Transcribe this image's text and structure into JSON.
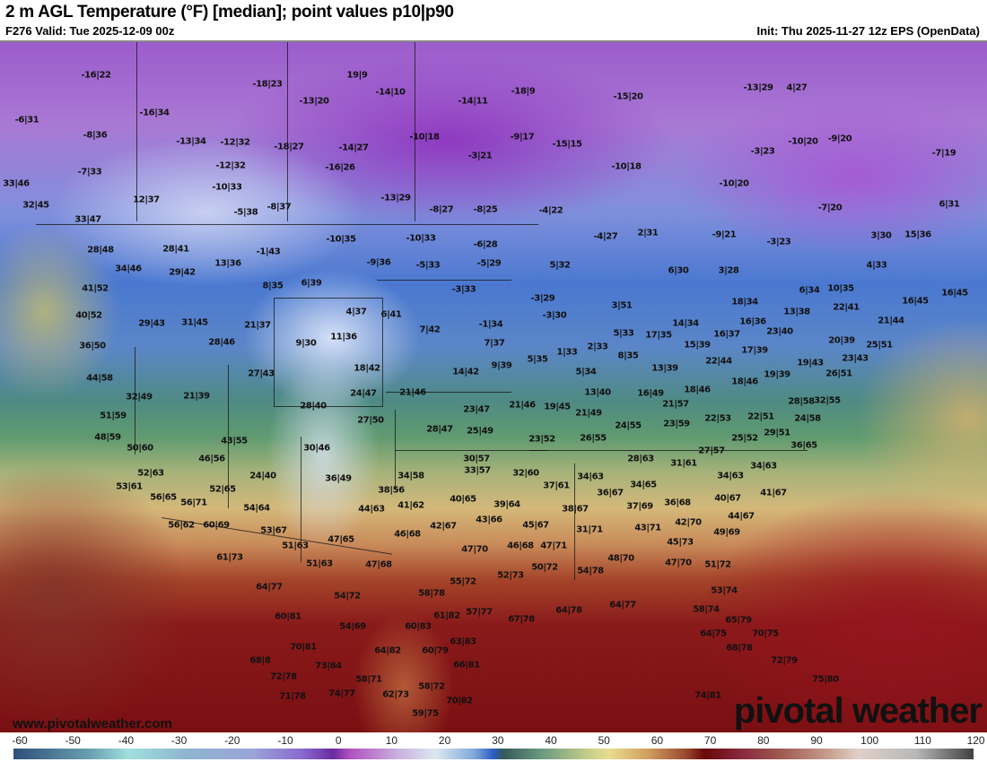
{
  "header": {
    "title": "2 m AGL Temperature (°F) [median]; point values p10|p90",
    "valid": "F276 Valid: Tue 2025-12-09 00z",
    "init": "Init: Thu 2025-11-27 12z EPS (OpenData)"
  },
  "watermark": {
    "url": "www.pivotalweather.com",
    "brand": "pivotal weather"
  },
  "colorbar": {
    "unit": "°F",
    "ticks": [
      "-60",
      "-50",
      "-40",
      "-30",
      "-20",
      "-10",
      "0",
      "10",
      "20",
      "30",
      "40",
      "50",
      "60",
      "70",
      "80",
      "90",
      "100",
      "110",
      "120"
    ]
  },
  "point_values": [
    "-16|22",
    "19|9",
    "-18|23",
    "-14|10",
    "-13|20",
    "-14|11",
    "-18|9",
    "-15|20",
    "-13|29",
    "4|27",
    "-6|31",
    "-16|34",
    "-8|36",
    "-13|34",
    "-12|32",
    "-18|27",
    "-14|27",
    "-10|18",
    "-9|17",
    "-15|15",
    "-3|21",
    "-3|23",
    "-10|20",
    "-9|20",
    "-7|19",
    "-7|33",
    "-12|32",
    "-16|26",
    "-10|18",
    "33|46",
    "-10|33",
    "12|37",
    "-13|29",
    "-10|20",
    "32|45",
    "-5|38",
    "-8|37",
    "-8|27",
    "-8|25",
    "-4|22",
    "-7|20",
    "6|31",
    "33|47",
    "28|48",
    "28|41",
    "13|36",
    "-1|43",
    "-10|35",
    "-10|33",
    "-6|28",
    "-4|27",
    "2|31",
    "-9|21",
    "-3|23",
    "3|30",
    "15|36",
    "34|46",
    "29|42",
    "8|35",
    "6|39",
    "-9|36",
    "-5|33",
    "-5|29",
    "5|32",
    "6|30",
    "3|28",
    "4|33",
    "41|52",
    "-3|33",
    "-3|29",
    "6|34",
    "10|35",
    "16|45",
    "16|45",
    "40|52",
    "29|43",
    "31|45",
    "21|37",
    "4|37",
    "6|41",
    "-1|34",
    "-3|30",
    "3|51",
    "18|34",
    "13|38",
    "22|41",
    "21|44",
    "36|50",
    "28|46",
    "9|30",
    "11|36",
    "7|42",
    "7|37",
    "5|33",
    "17|35",
    "14|34",
    "16|36",
    "16|37",
    "23|40",
    "20|39",
    "25|51",
    "44|58",
    "27|43",
    "18|42",
    "14|42",
    "9|39",
    "5|35",
    "1|33",
    "2|33",
    "8|35",
    "15|39",
    "17|39",
    "22|44",
    "19|43",
    "23|43",
    "26|51",
    "19|39",
    "32|49",
    "21|39",
    "24|47",
    "21|46",
    "5|34",
    "13|40",
    "13|39",
    "16|49",
    "18|46",
    "18|46",
    "28|58",
    "32|55",
    "51|59",
    "28|40",
    "23|47",
    "21|46",
    "19|45",
    "21|49",
    "21|57",
    "22|53",
    "22|51",
    "24|58",
    "48|59",
    "27|50",
    "28|47",
    "25|49",
    "23|52",
    "26|55",
    "24|55",
    "23|59",
    "25|52",
    "29|51",
    "50|60",
    "43|55",
    "30|46",
    "30|57",
    "28|63",
    "27|57",
    "31|61",
    "36|65",
    "46|56",
    "52|63",
    "24|40",
    "36|49",
    "34|58",
    "33|57",
    "32|60",
    "34|63",
    "34|63",
    "34|63",
    "53|61",
    "52|65",
    "38|56",
    "37|61",
    "36|67",
    "34|65",
    "40|67",
    "41|67",
    "56|65",
    "56|71",
    "54|64",
    "44|63",
    "41|62",
    "40|65",
    "39|64",
    "38|67",
    "37|69",
    "36|68",
    "44|67",
    "56|62",
    "60|69",
    "53|67",
    "47|65",
    "46|68",
    "42|67",
    "43|66",
    "45|67",
    "31|71",
    "43|71",
    "42|70",
    "49|69",
    "51|63",
    "47|70",
    "46|68",
    "47|71",
    "45|73",
    "61|73",
    "51|63",
    "47|68",
    "48|70",
    "47|70",
    "51|72",
    "50|72",
    "54|78",
    "52|73",
    "64|77",
    "54|72",
    "55|72",
    "58|78",
    "53|74",
    "60|81",
    "54|69",
    "60|83",
    "61|82",
    "57|77",
    "67|78",
    "64|78",
    "64|77",
    "58|74",
    "65|79",
    "70|81",
    "64|82",
    "60|79",
    "63|83",
    "64|75",
    "70|75",
    "68|78",
    "68|8",
    "73|84",
    "66|81",
    "72|79",
    "72|78",
    "58|71",
    "58|72",
    "75|80",
    "71|78",
    "74|77",
    "62|73",
    "70|82",
    "74|81",
    "59|75"
  ]
}
